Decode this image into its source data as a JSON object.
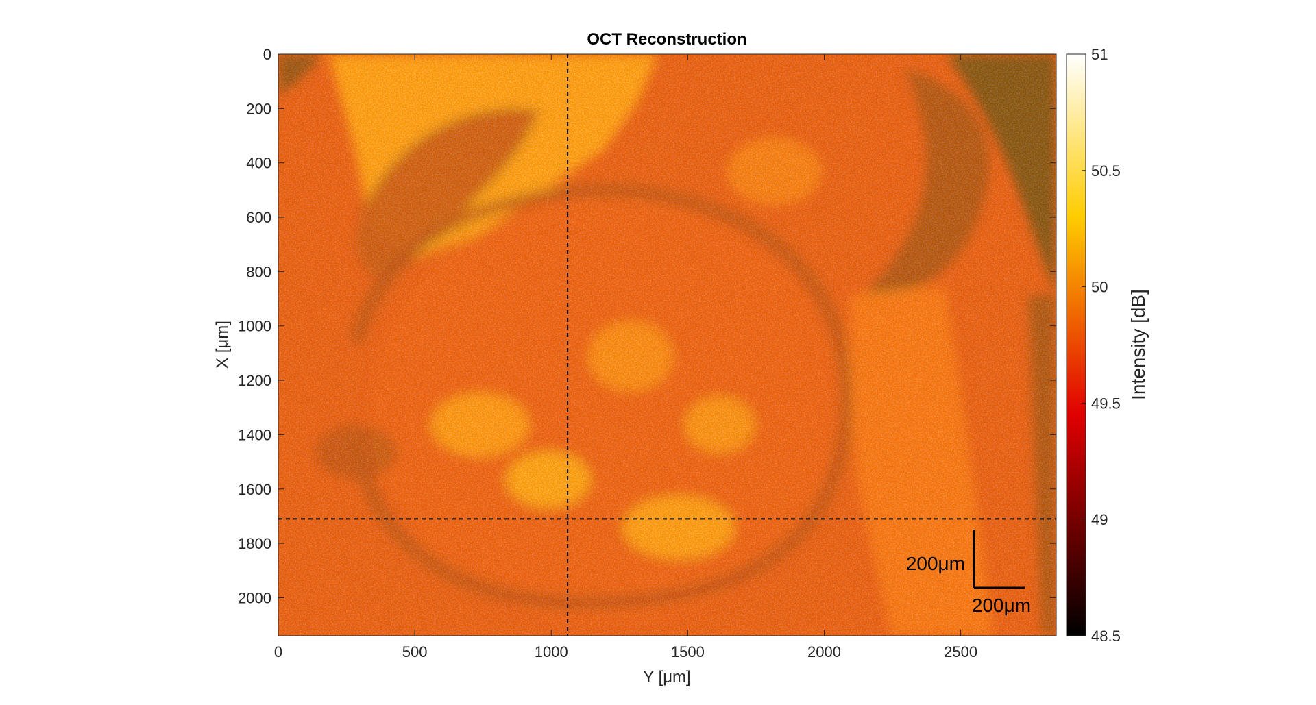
{
  "chart_data": {
    "type": "heatmap",
    "title": "OCT Reconstruction",
    "xlabel": "Y [μm]",
    "ylabel": "X [μm]",
    "colorbar_label": "Intensity [dB]",
    "colormap": "hot",
    "xlim": [
      0,
      2850
    ],
    "ylim": [
      0,
      2140
    ],
    "y_reversed": true,
    "clim": [
      48.5,
      51
    ],
    "x_ticks": [
      0,
      500,
      1000,
      1500,
      2000,
      2500
    ],
    "y_ticks": [
      0,
      200,
      400,
      600,
      800,
      1000,
      1200,
      1400,
      1600,
      1800,
      2000
    ],
    "colorbar_ticks": [
      48.5,
      49,
      49.5,
      50,
      50.5,
      51
    ],
    "crosshair": {
      "y_um": 1060,
      "x_um": 1710,
      "style": "dashed",
      "color": "#000000"
    },
    "scale_bar": {
      "label_vertical": "200μm",
      "label_horizontal": "200μm",
      "length_um": 200
    }
  }
}
